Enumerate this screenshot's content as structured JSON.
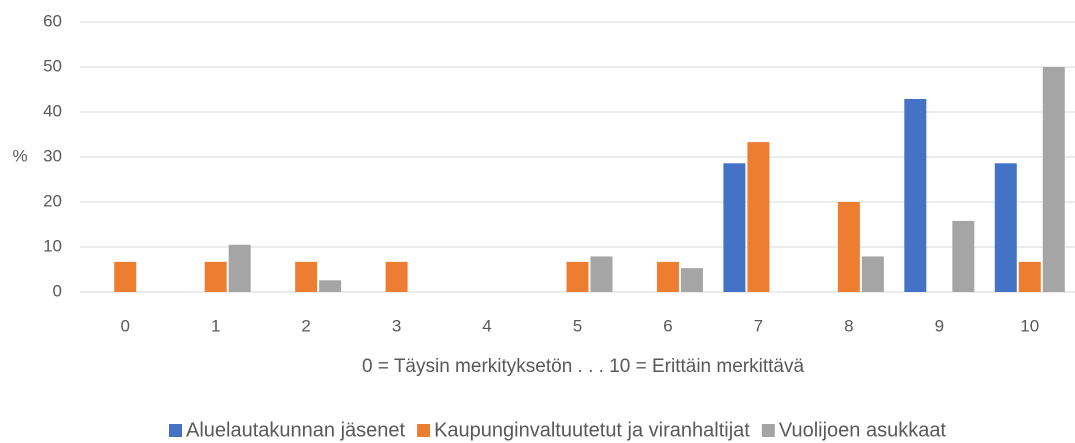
{
  "chart_data": {
    "type": "bar",
    "x_label": "0 = Täysin merkityksetön . . .  10 = Erittäin merkittävä",
    "y_label": "%",
    "categories": [
      "0",
      "1",
      "2",
      "3",
      "4",
      "5",
      "6",
      "7",
      "8",
      "9",
      "10"
    ],
    "series": [
      {
        "name": "Aluelautakunnan jäsenet",
        "color": "#4472c4",
        "values": [
          0,
          0,
          0,
          0,
          0,
          0,
          0,
          28.6,
          0,
          42.9,
          28.6
        ]
      },
      {
        "name": "Kaupunginvaltuutetut ja viranhaltijat",
        "color": "#ed7d31",
        "values": [
          6.7,
          6.7,
          6.7,
          6.7,
          0,
          6.7,
          6.7,
          33.3,
          20,
          0,
          6.7
        ]
      },
      {
        "name": "Vuolijoen asukkaat",
        "color": "#a5a5a5",
        "values": [
          0,
          10.5,
          2.6,
          0,
          0,
          7.9,
          5.3,
          0,
          7.9,
          15.8,
          50
        ]
      }
    ],
    "ylim": [
      0,
      60
    ],
    "yticks": [
      0,
      10,
      20,
      30,
      40,
      50,
      60
    ],
    "grid": true,
    "legend": "bottom"
  }
}
